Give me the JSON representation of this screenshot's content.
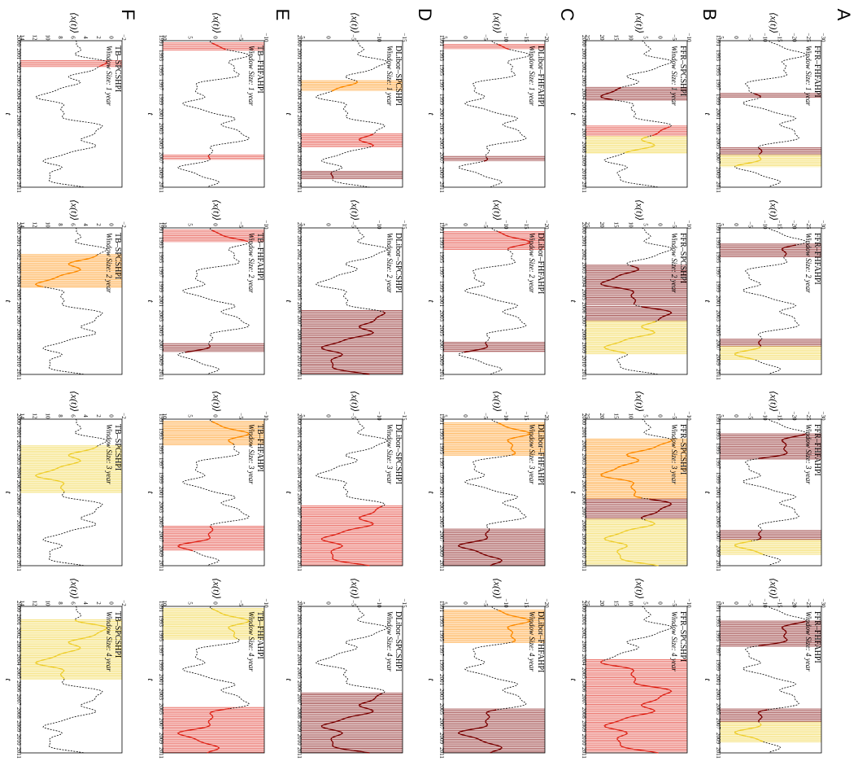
{
  "figure": {
    "ylabel": "⟨x(t)⟩",
    "xlabel": "t"
  },
  "rows": [
    {
      "letter": "A",
      "pair": "FFR–FHFAHPI",
      "yticks": [
        "−30",
        "−25",
        "−20",
        "−15",
        "−10",
        "−5",
        "0",
        "5"
      ]
    },
    {
      "letter": "B",
      "pair": "FFR–SPCSHPI",
      "yticks": [
        "−10",
        "−5",
        "0",
        "5",
        "10",
        "15",
        "20",
        "25"
      ]
    },
    {
      "letter": "C",
      "pair": "DLibor–FHFAHPI",
      "yticks": [
        "−20",
        "−15",
        "−10",
        "−5",
        "0",
        "5"
      ]
    },
    {
      "letter": "D",
      "pair": "DLibor–SPCSHPI",
      "yticks": [
        "−15",
        "−10",
        "−5",
        "0",
        "5"
      ]
    },
    {
      "letter": "E",
      "pair": "TB–FHFAHPI",
      "yticks": [
        "−10",
        "−5",
        "0",
        "5",
        "10"
      ]
    },
    {
      "letter": "F",
      "pair": "TB–SPCSHPI",
      "yticks": [
        "−2",
        "0",
        "2",
        "4",
        "6",
        "8",
        "10",
        "12",
        "14"
      ]
    }
  ],
  "window_labels": [
    "Window Size: 1 year",
    "Window Size: 2 year",
    "Window Size: 3 year",
    "Window Size: 4 year"
  ],
  "xticks_full": [
    "1991",
    "1993",
    "1995",
    "1997",
    "1999",
    "2001",
    "2003",
    "2005",
    "2007",
    "2009",
    "2011"
  ],
  "xticks_short": [
    "2000",
    "2001",
    "2002",
    "2003",
    "2004",
    "2005",
    "2006",
    "2007",
    "2008",
    "2009",
    "2010",
    "2011"
  ],
  "chart_data": {
    "type": "line",
    "x_range_full": [
      1991,
      2011
    ],
    "x_range_short": [
      2000,
      2011
    ],
    "colors": {
      "dark": "#7a0000",
      "red": "#e0261a",
      "orange": "#ff8c00",
      "yellow": "#f0d030",
      "dash": "#000000"
    },
    "panels": [
      {
        "row": "A",
        "window": 1,
        "ylim": [
          -30,
          5
        ],
        "bands": [
          [
            1998.2,
            1998.8,
            "dark"
          ],
          [
            2005.6,
            2006.6,
            "dark"
          ],
          [
            2006.6,
            2008.3,
            "yellow"
          ]
        ]
      },
      {
        "row": "A",
        "window": 2,
        "ylim": [
          -30,
          5
        ],
        "bands": [
          [
            1993.2,
            1995.0,
            "dark"
          ],
          [
            2006.2,
            2007.2,
            "dark"
          ],
          [
            2007.2,
            2009.0,
            "yellow"
          ]
        ]
      },
      {
        "row": "A",
        "window": 3,
        "ylim": [
          -30,
          5
        ],
        "bands": [
          [
            1993.0,
            1996.5,
            "dark"
          ],
          [
            2006.2,
            2007.5,
            "dark"
          ],
          [
            2007.5,
            2009.5,
            "yellow"
          ]
        ]
      },
      {
        "row": "A",
        "window": 4,
        "ylim": [
          -30,
          5
        ],
        "bands": [
          [
            1993.0,
            1996.5,
            "dark"
          ],
          [
            2005.0,
            2006.8,
            "dark"
          ],
          [
            2006.8,
            2009.5,
            "yellow"
          ]
        ]
      },
      {
        "row": "B",
        "window": 1,
        "ylim": [
          -10,
          25
        ],
        "bands": [
          [
            2003.5,
            2004.5,
            "dark"
          ],
          [
            2006.4,
            2007.2,
            "red"
          ],
          [
            2007.2,
            2008.5,
            "yellow"
          ]
        ]
      },
      {
        "row": "B",
        "window": 2,
        "ylim": [
          -10,
          25
        ],
        "bands": [
          [
            2002.8,
            2005.8,
            "dark"
          ],
          [
            2005.9,
            2007.0,
            "dark"
          ],
          [
            2007.0,
            2009.5,
            "yellow"
          ]
        ]
      },
      {
        "row": "B",
        "window": 3,
        "ylim": [
          -10,
          25
        ],
        "bands": [
          [
            2001.5,
            2006.0,
            "orange"
          ],
          [
            2006.0,
            2007.5,
            "dark"
          ],
          [
            2007.5,
            2011.0,
            "yellow"
          ]
        ]
      },
      {
        "row": "B",
        "window": 4,
        "ylim": [
          -10,
          25
        ],
        "bands": [
          [
            2004.0,
            2011.0,
            "red"
          ]
        ]
      },
      {
        "row": "C",
        "window": 1,
        "ylim": [
          -20,
          5
        ],
        "bands": [
          [
            1991.5,
            1992.2,
            "red"
          ],
          [
            2006.8,
            2007.5,
            "dark"
          ]
        ]
      },
      {
        "row": "C",
        "window": 2,
        "ylim": [
          -20,
          5
        ],
        "bands": [
          [
            1991.5,
            1994.0,
            "red"
          ],
          [
            2006.6,
            2008.0,
            "dark"
          ]
        ]
      },
      {
        "row": "C",
        "window": 3,
        "ylim": [
          -20,
          5
        ],
        "bands": [
          [
            1991.5,
            1996.0,
            "orange"
          ],
          [
            2006.0,
            2011.0,
            "dark"
          ]
        ]
      },
      {
        "row": "C",
        "window": 4,
        "ylim": [
          -20,
          5
        ],
        "bands": [
          [
            1991.5,
            1996.0,
            "orange"
          ],
          [
            2005.0,
            2011.0,
            "dark"
          ]
        ]
      },
      {
        "row": "D",
        "window": 1,
        "ylim": [
          -15,
          5
        ],
        "bands": [
          [
            2003.0,
            2003.8,
            "orange"
          ],
          [
            2007.0,
            2008.0,
            "red"
          ],
          [
            2009.8,
            2010.4,
            "dark"
          ]
        ]
      },
      {
        "row": "D",
        "window": 2,
        "ylim": [
          -15,
          5
        ],
        "bands": [
          [
            2006.2,
            2011.0,
            "dark"
          ]
        ]
      },
      {
        "row": "D",
        "window": 3,
        "ylim": [
          -15,
          5
        ],
        "bands": [
          [
            2006.5,
            2011.0,
            "red"
          ]
        ]
      },
      {
        "row": "D",
        "window": 4,
        "ylim": [
          -15,
          5
        ],
        "bands": [
          [
            2006.5,
            2011.0,
            "dark"
          ]
        ]
      },
      {
        "row": "E",
        "window": 1,
        "ylim": [
          -10,
          10
        ],
        "bands": [
          [
            1991.3,
            1992.3,
            "red"
          ],
          [
            2006.6,
            2007.3,
            "red"
          ]
        ]
      },
      {
        "row": "E",
        "window": 2,
        "ylim": [
          -10,
          10
        ],
        "bands": [
          [
            1991.3,
            1993.0,
            "red"
          ],
          [
            2006.8,
            2008.0,
            "dark"
          ]
        ]
      },
      {
        "row": "E",
        "window": 3,
        "ylim": [
          -10,
          10
        ],
        "bands": [
          [
            1991.3,
            1994.5,
            "orange"
          ],
          [
            2005.6,
            2009.0,
            "red"
          ]
        ]
      },
      {
        "row": "E",
        "window": 4,
        "ylim": [
          -10,
          10
        ],
        "bands": [
          [
            1991.3,
            1995.5,
            "yellow"
          ],
          [
            2004.8,
            2011.0,
            "red"
          ]
        ]
      },
      {
        "row": "F",
        "window": 1,
        "ylim": [
          -2,
          14
        ],
        "bands": [
          [
            2001.5,
            2002.0,
            "red"
          ]
        ]
      },
      {
        "row": "F",
        "window": 2,
        "ylim": [
          -2,
          14
        ],
        "bands": [
          [
            2002.0,
            2004.5,
            "orange"
          ]
        ]
      },
      {
        "row": "F",
        "window": 3,
        "ylim": [
          -2,
          14
        ],
        "bands": [
          [
            2002.0,
            2005.5,
            "yellow"
          ]
        ]
      },
      {
        "row": "F",
        "window": 4,
        "ylim": [
          -2,
          14
        ],
        "bands": [
          [
            2001.0,
            2005.5,
            "yellow"
          ]
        ]
      }
    ]
  }
}
